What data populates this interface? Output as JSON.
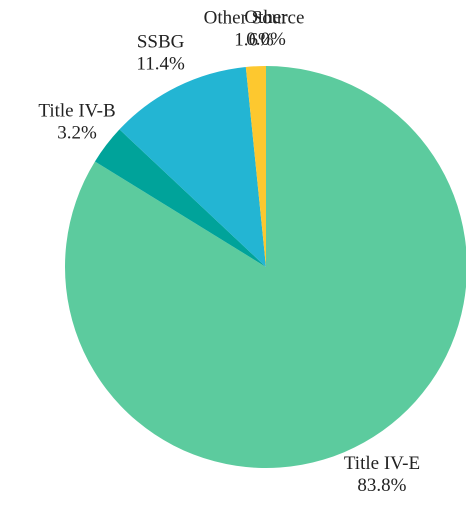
{
  "chart_data": {
    "type": "pie",
    "categories": [
      "Title IV-E",
      "Title IV-B",
      "SSBG",
      "Other Source",
      "Other"
    ],
    "values": [
      83.8,
      3.2,
      11.4,
      1.6,
      0.0
    ],
    "value_labels": [
      "83.8%",
      "3.2%",
      "11.4%",
      "1.6%",
      "0.0%"
    ],
    "colors": [
      "#5ccb9e",
      "#00a39a",
      "#23b5d3",
      "#fdc82f",
      "#f28e2b"
    ]
  }
}
